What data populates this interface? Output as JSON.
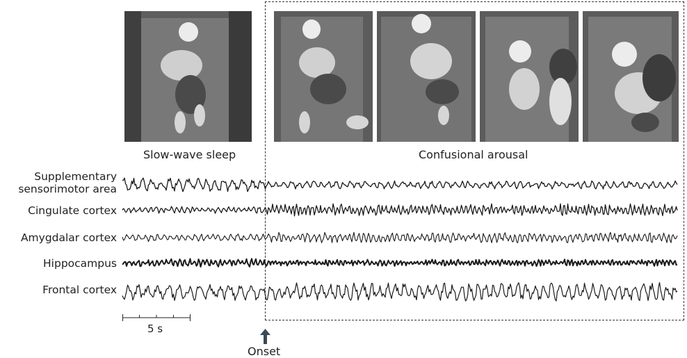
{
  "panels": [
    {
      "id": "p1",
      "stage": "sleep"
    },
    {
      "id": "p2",
      "stage": "arousal"
    },
    {
      "id": "p3",
      "stage": "arousal"
    },
    {
      "id": "p4",
      "stage": "arousal"
    },
    {
      "id": "p5",
      "stage": "arousal"
    }
  ],
  "captions": {
    "sleep": "Slow-wave sleep",
    "arousal": "Confusional arousal"
  },
  "channels": [
    {
      "line1": "Supplementary",
      "line2": "sensorimotor area",
      "pre_amp": 11,
      "post_amp": 6,
      "freq": 0.9,
      "weight": 1.3
    },
    {
      "line1": "Cingulate cortex",
      "line2": "",
      "pre_amp": 5,
      "post_amp": 9,
      "freq": 1.6,
      "weight": 1.3
    },
    {
      "line1": "Amygdalar cortex",
      "line2": "",
      "pre_amp": 6,
      "post_amp": 8,
      "freq": 1.3,
      "weight": 1.1
    },
    {
      "line1": "Hippocampus",
      "line2": "",
      "pre_amp": 6,
      "post_amp": 5,
      "freq": 1.8,
      "weight": 2.0
    },
    {
      "line1": "Frontal cortex",
      "line2": "",
      "pre_amp": 13,
      "post_amp": 14,
      "freq": 0.8,
      "weight": 1.2
    }
  ],
  "scale_bar": {
    "label": "5 s"
  },
  "onset": {
    "label": "Onset"
  },
  "colors": {
    "trace": "#1a1a1a",
    "photo_bg": "#6b6b6b",
    "arrow": "#3b4a55"
  }
}
